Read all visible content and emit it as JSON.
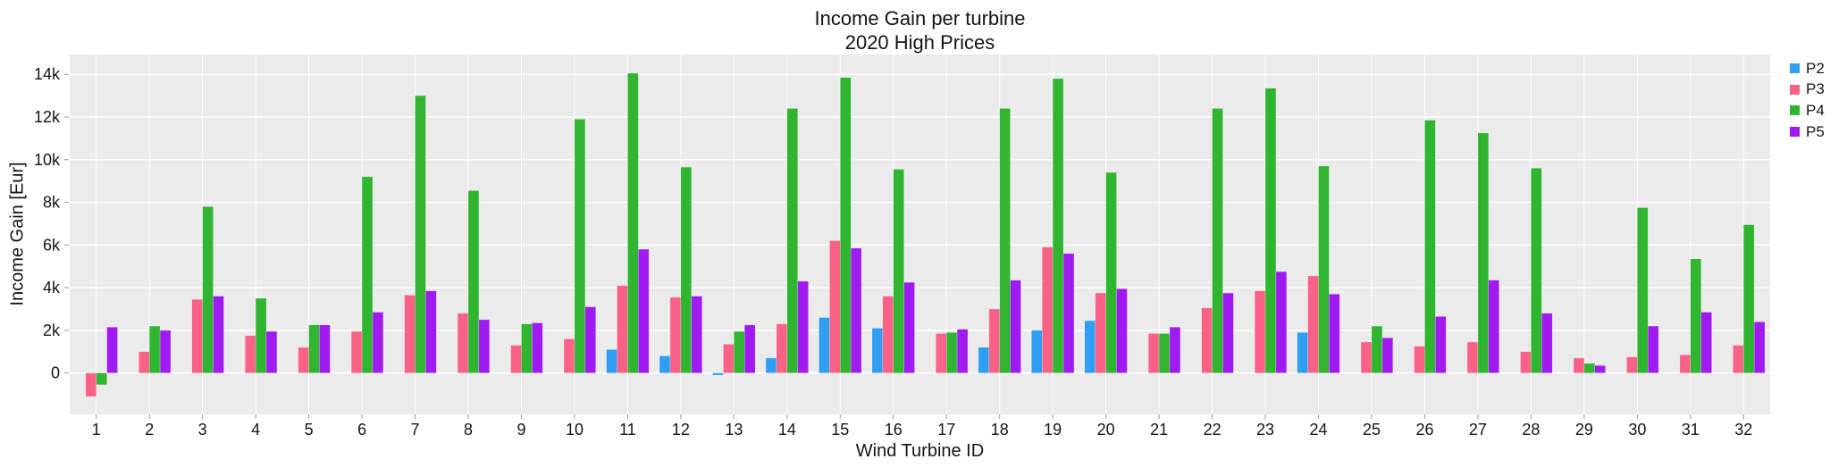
{
  "chart_data": {
    "type": "bar",
    "title": "Income Gain per turbine",
    "subtitle": "2020 High Prices",
    "xlabel": "Wind Turbine ID",
    "ylabel": "Income Gain [Eur]",
    "categories": [
      "1",
      "2",
      "3",
      "4",
      "5",
      "6",
      "7",
      "8",
      "9",
      "10",
      "11",
      "12",
      "13",
      "14",
      "15",
      "16",
      "17",
      "18",
      "19",
      "20",
      "21",
      "22",
      "23",
      "24",
      "25",
      "26",
      "27",
      "28",
      "29",
      "30",
      "31",
      "32"
    ],
    "series": [
      {
        "name": "P2",
        "color": "#2E9DF2",
        "values": [
          null,
          null,
          null,
          null,
          null,
          null,
          null,
          null,
          null,
          null,
          1100,
          800,
          -100,
          700,
          2600,
          2100,
          null,
          1200,
          2000,
          2450,
          null,
          null,
          null,
          1900,
          null,
          null,
          null,
          null,
          null,
          null,
          null,
          null
        ]
      },
      {
        "name": "P3",
        "color": "#FA6186",
        "values": [
          -1100,
          1000,
          3450,
          1750,
          1200,
          1950,
          3650,
          2800,
          1300,
          1600,
          4100,
          3550,
          1350,
          2300,
          6200,
          3600,
          1850,
          3000,
          5900,
          3750,
          1850,
          3050,
          3850,
          4550,
          1450,
          1250,
          1450,
          1000,
          700,
          750,
          850,
          1300
        ]
      },
      {
        "name": "P4",
        "color": "#2FB52F",
        "values": [
          -550,
          2200,
          7800,
          3500,
          2250,
          9200,
          13000,
          8550,
          2300,
          11900,
          14050,
          9650,
          1950,
          12400,
          13850,
          9550,
          1900,
          12400,
          13800,
          9400,
          1850,
          12400,
          13350,
          9700,
          2200,
          11850,
          11250,
          9600,
          450,
          7750,
          5350,
          6950
        ]
      },
      {
        "name": "P5",
        "color": "#A01BF2",
        "values": [
          2150,
          2000,
          3600,
          1950,
          2250,
          2850,
          3850,
          2500,
          2350,
          3100,
          5800,
          3600,
          2250,
          4300,
          5850,
          4250,
          2050,
          4350,
          5600,
          3950,
          2150,
          3750,
          4750,
          3700,
          1650,
          2650,
          4350,
          2800,
          350,
          2200,
          2850,
          2400
        ]
      }
    ],
    "ylim": [
      -1940,
      14930
    ],
    "yticks": [
      0,
      2000,
      4000,
      6000,
      8000,
      10000,
      12000,
      14000
    ],
    "ytick_labels": [
      "0",
      "2k",
      "4k",
      "6k",
      "8k",
      "10k",
      "12k",
      "14k"
    ],
    "grid": true,
    "legend_position": "right",
    "plot_bg": "#EBEBEB",
    "grid_color": "#FFFFFF",
    "tick_color": "#999999",
    "text_color": "#151515"
  }
}
